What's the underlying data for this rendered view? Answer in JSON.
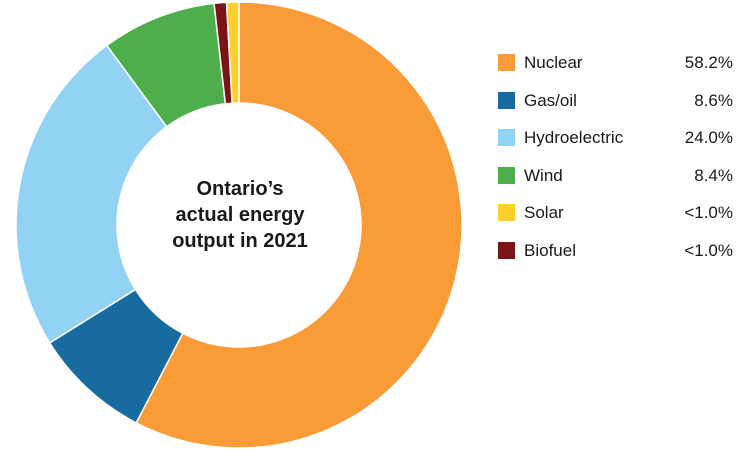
{
  "chart_data": {
    "type": "pie",
    "donut": true,
    "title_lines": [
      "Ontario’s",
      "actual energy",
      "output in 2021"
    ],
    "slices": [
      {
        "label": "Nuclear",
        "value": 58.2,
        "display": "58.2%",
        "color": "#F99B37"
      },
      {
        "label": "Gas/oil",
        "value": 8.6,
        "display": "8.6%",
        "color": "#186B9E"
      },
      {
        "label": "Hydroelectric",
        "value": 24.0,
        "display": "24.0%",
        "color": "#92D2F3"
      },
      {
        "label": "Wind",
        "value": 8.4,
        "display": "8.4%",
        "color": "#4DAE4B"
      },
      {
        "label": "Biofuel",
        "value": 0.9,
        "display": "<1.0%",
        "color": "#7B1416"
      },
      {
        "label": "Solar",
        "value": 0.9,
        "display": "<1.0%",
        "color": "#FDD02E"
      }
    ],
    "legend_order": [
      "Nuclear",
      "Gas/oil",
      "Hydroelectric",
      "Wind",
      "Solar",
      "Biofuel"
    ],
    "legend_position": "right"
  }
}
